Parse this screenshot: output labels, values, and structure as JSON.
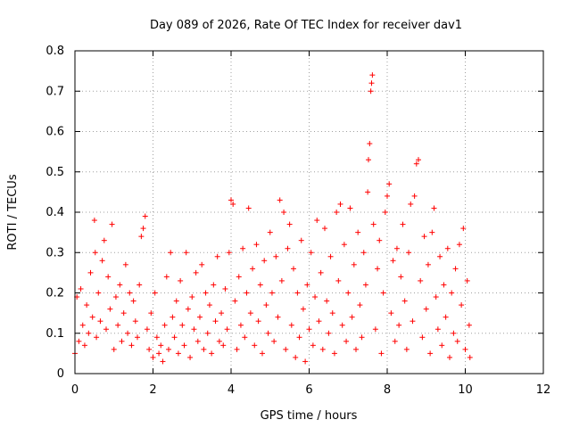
{
  "chart_data": {
    "type": "scatter",
    "title": "Day 089 of 2026, Rate Of TEC Index for receiver dav1",
    "xlabel": "GPS time / hours",
    "ylabel": "ROTI / TECUs",
    "xlim": [
      0,
      12
    ],
    "ylim": [
      0,
      0.8
    ],
    "x_ticks": [
      "0",
      "2",
      "4",
      "6",
      "8",
      "10",
      "12"
    ],
    "y_ticks": [
      "0",
      "0.1",
      "0.2",
      "0.3",
      "0.4",
      "0.5",
      "0.6",
      "0.7",
      "0.8"
    ],
    "grid": true,
    "marker": "+",
    "color": "#ff0000",
    "series": [
      {
        "points": [
          [
            0.0,
            0.05
          ],
          [
            0.05,
            0.19
          ],
          [
            0.1,
            0.08
          ],
          [
            0.15,
            0.21
          ],
          [
            0.2,
            0.12
          ],
          [
            0.25,
            0.07
          ],
          [
            0.3,
            0.17
          ],
          [
            0.35,
            0.1
          ],
          [
            0.4,
            0.25
          ],
          [
            0.45,
            0.14
          ],
          [
            0.5,
            0.38
          ],
          [
            0.52,
            0.3
          ],
          [
            0.55,
            0.09
          ],
          [
            0.6,
            0.2
          ],
          [
            0.65,
            0.13
          ],
          [
            0.7,
            0.28
          ],
          [
            0.75,
            0.33
          ],
          [
            0.8,
            0.11
          ],
          [
            0.85,
            0.24
          ],
          [
            0.9,
            0.16
          ],
          [
            0.95,
            0.37
          ],
          [
            1.0,
            0.06
          ],
          [
            1.05,
            0.19
          ],
          [
            1.1,
            0.12
          ],
          [
            1.15,
            0.22
          ],
          [
            1.2,
            0.08
          ],
          [
            1.25,
            0.15
          ],
          [
            1.3,
            0.27
          ],
          [
            1.35,
            0.1
          ],
          [
            1.4,
            0.2
          ],
          [
            1.45,
            0.07
          ],
          [
            1.5,
            0.18
          ],
          [
            1.55,
            0.13
          ],
          [
            1.6,
            0.09
          ],
          [
            1.65,
            0.22
          ],
          [
            1.7,
            0.34
          ],
          [
            1.75,
            0.36
          ],
          [
            1.8,
            0.39
          ],
          [
            1.85,
            0.11
          ],
          [
            1.9,
            0.06
          ],
          [
            1.95,
            0.15
          ],
          [
            2.0,
            0.04
          ],
          [
            2.05,
            0.2
          ],
          [
            2.1,
            0.09
          ],
          [
            2.15,
            0.05
          ],
          [
            2.2,
            0.07
          ],
          [
            2.25,
            0.03
          ],
          [
            2.3,
            0.12
          ],
          [
            2.35,
            0.24
          ],
          [
            2.4,
            0.06
          ],
          [
            2.45,
            0.3
          ],
          [
            2.5,
            0.14
          ],
          [
            2.55,
            0.09
          ],
          [
            2.6,
            0.18
          ],
          [
            2.65,
            0.05
          ],
          [
            2.7,
            0.23
          ],
          [
            2.75,
            0.12
          ],
          [
            2.8,
            0.07
          ],
          [
            2.85,
            0.3
          ],
          [
            2.9,
            0.16
          ],
          [
            2.95,
            0.04
          ],
          [
            3.0,
            0.19
          ],
          [
            3.05,
            0.11
          ],
          [
            3.1,
            0.25
          ],
          [
            3.15,
            0.08
          ],
          [
            3.2,
            0.14
          ],
          [
            3.25,
            0.27
          ],
          [
            3.3,
            0.06
          ],
          [
            3.35,
            0.2
          ],
          [
            3.4,
            0.1
          ],
          [
            3.45,
            0.17
          ],
          [
            3.5,
            0.05
          ],
          [
            3.55,
            0.22
          ],
          [
            3.6,
            0.13
          ],
          [
            3.65,
            0.29
          ],
          [
            3.7,
            0.08
          ],
          [
            3.75,
            0.15
          ],
          [
            3.8,
            0.07
          ],
          [
            3.85,
            0.21
          ],
          [
            3.9,
            0.11
          ],
          [
            3.95,
            0.3
          ],
          [
            4.0,
            0.43
          ],
          [
            4.05,
            0.42
          ],
          [
            4.1,
            0.18
          ],
          [
            4.15,
            0.06
          ],
          [
            4.2,
            0.24
          ],
          [
            4.25,
            0.12
          ],
          [
            4.3,
            0.31
          ],
          [
            4.35,
            0.09
          ],
          [
            4.4,
            0.2
          ],
          [
            4.45,
            0.41
          ],
          [
            4.5,
            0.15
          ],
          [
            4.55,
            0.26
          ],
          [
            4.6,
            0.07
          ],
          [
            4.65,
            0.32
          ],
          [
            4.7,
            0.13
          ],
          [
            4.75,
            0.22
          ],
          [
            4.8,
            0.05
          ],
          [
            4.85,
            0.28
          ],
          [
            4.9,
            0.17
          ],
          [
            4.95,
            0.1
          ],
          [
            5.0,
            0.35
          ],
          [
            5.05,
            0.2
          ],
          [
            5.1,
            0.08
          ],
          [
            5.15,
            0.29
          ],
          [
            5.2,
            0.14
          ],
          [
            5.25,
            0.43
          ],
          [
            5.3,
            0.23
          ],
          [
            5.35,
            0.4
          ],
          [
            5.4,
            0.06
          ],
          [
            5.45,
            0.31
          ],
          [
            5.5,
            0.37
          ],
          [
            5.55,
            0.12
          ],
          [
            5.6,
            0.26
          ],
          [
            5.65,
            0.04
          ],
          [
            5.7,
            0.2
          ],
          [
            5.75,
            0.09
          ],
          [
            5.8,
            0.33
          ],
          [
            5.85,
            0.16
          ],
          [
            5.9,
            0.03
          ],
          [
            5.95,
            0.22
          ],
          [
            6.0,
            0.11
          ],
          [
            6.05,
            0.3
          ],
          [
            6.1,
            0.07
          ],
          [
            6.15,
            0.19
          ],
          [
            6.2,
            0.38
          ],
          [
            6.25,
            0.13
          ],
          [
            6.3,
            0.25
          ],
          [
            6.35,
            0.06
          ],
          [
            6.4,
            0.36
          ],
          [
            6.45,
            0.18
          ],
          [
            6.5,
            0.1
          ],
          [
            6.55,
            0.29
          ],
          [
            6.6,
            0.15
          ],
          [
            6.65,
            0.05
          ],
          [
            6.7,
            0.4
          ],
          [
            6.75,
            0.23
          ],
          [
            6.8,
            0.42
          ],
          [
            6.85,
            0.12
          ],
          [
            6.9,
            0.32
          ],
          [
            6.95,
            0.08
          ],
          [
            7.0,
            0.2
          ],
          [
            7.05,
            0.41
          ],
          [
            7.1,
            0.14
          ],
          [
            7.15,
            0.27
          ],
          [
            7.2,
            0.06
          ],
          [
            7.25,
            0.35
          ],
          [
            7.3,
            0.17
          ],
          [
            7.35,
            0.09
          ],
          [
            7.4,
            0.3
          ],
          [
            7.45,
            0.22
          ],
          [
            7.5,
            0.45
          ],
          [
            7.52,
            0.53
          ],
          [
            7.55,
            0.57
          ],
          [
            7.58,
            0.7
          ],
          [
            7.6,
            0.72
          ],
          [
            7.62,
            0.74
          ],
          [
            7.65,
            0.37
          ],
          [
            7.7,
            0.11
          ],
          [
            7.75,
            0.26
          ],
          [
            7.8,
            0.33
          ],
          [
            7.85,
            0.05
          ],
          [
            7.9,
            0.2
          ],
          [
            7.95,
            0.4
          ],
          [
            8.0,
            0.44
          ],
          [
            8.05,
            0.47
          ],
          [
            8.1,
            0.15
          ],
          [
            8.15,
            0.28
          ],
          [
            8.2,
            0.08
          ],
          [
            8.25,
            0.31
          ],
          [
            8.3,
            0.12
          ],
          [
            8.35,
            0.24
          ],
          [
            8.4,
            0.37
          ],
          [
            8.45,
            0.18
          ],
          [
            8.5,
            0.06
          ],
          [
            8.55,
            0.3
          ],
          [
            8.6,
            0.42
          ],
          [
            8.65,
            0.13
          ],
          [
            8.7,
            0.44
          ],
          [
            8.75,
            0.52
          ],
          [
            8.8,
            0.53
          ],
          [
            8.85,
            0.23
          ],
          [
            8.9,
            0.09
          ],
          [
            8.95,
            0.34
          ],
          [
            9.0,
            0.16
          ],
          [
            9.05,
            0.27
          ],
          [
            9.1,
            0.05
          ],
          [
            9.15,
            0.35
          ],
          [
            9.2,
            0.41
          ],
          [
            9.25,
            0.19
          ],
          [
            9.3,
            0.11
          ],
          [
            9.35,
            0.29
          ],
          [
            9.4,
            0.07
          ],
          [
            9.45,
            0.22
          ],
          [
            9.5,
            0.14
          ],
          [
            9.55,
            0.31
          ],
          [
            9.6,
            0.04
          ],
          [
            9.65,
            0.2
          ],
          [
            9.7,
            0.1
          ],
          [
            9.75,
            0.26
          ],
          [
            9.8,
            0.08
          ],
          [
            9.85,
            0.32
          ],
          [
            9.9,
            0.17
          ],
          [
            9.95,
            0.36
          ],
          [
            10.0,
            0.06
          ],
          [
            10.05,
            0.23
          ],
          [
            10.1,
            0.12
          ],
          [
            10.12,
            0.04
          ]
        ]
      }
    ]
  }
}
